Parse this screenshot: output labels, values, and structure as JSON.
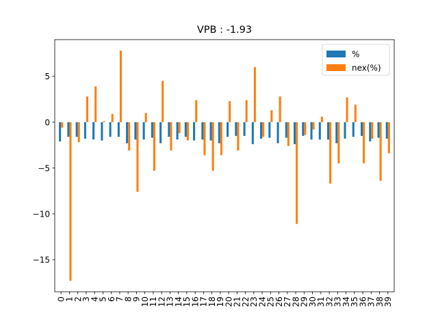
{
  "chart_data": {
    "type": "bar",
    "title": "VPB : -1.93",
    "xlabel": "",
    "ylabel": "",
    "categories": [
      "0",
      "1",
      "2",
      "3",
      "4",
      "5",
      "6",
      "7",
      "8",
      "9",
      "10",
      "11",
      "12",
      "13",
      "14",
      "15",
      "16",
      "17",
      "18",
      "19",
      "20",
      "21",
      "22",
      "23",
      "24",
      "25",
      "26",
      "27",
      "28",
      "29",
      "30",
      "31",
      "32",
      "33",
      "34",
      "35",
      "36",
      "37",
      "38",
      "39"
    ],
    "ylim": [
      -18.5,
      9.0
    ],
    "yticks": [
      5,
      0,
      -5,
      -10,
      -15
    ],
    "ytick_labels": [
      "5",
      "0",
      "−5",
      "−10",
      "−15"
    ],
    "legend_position": "top-right",
    "grid": false,
    "series": [
      {
        "name": "%",
        "color": "#1f77b4",
        "values": [
          -2.1,
          -1.6,
          -1.6,
          -1.8,
          -1.9,
          -2.0,
          -1.6,
          -1.6,
          -2.3,
          -1.9,
          -1.9,
          -1.7,
          -2.3,
          -1.6,
          -1.9,
          -1.6,
          -2.0,
          -1.9,
          -2.0,
          -2.3,
          -1.6,
          -1.5,
          -1.5,
          -2.4,
          -1.8,
          -1.7,
          -2.3,
          -1.7,
          -2.4,
          -1.5,
          -1.9,
          -1.9,
          -1.9,
          -2.3,
          -1.8,
          -1.6,
          -1.5,
          -2.1,
          -1.7,
          -1.8
        ]
      },
      {
        "name": "nex(%)",
        "color": "#ff7f0e",
        "values": [
          -0.6,
          -17.3,
          -2.2,
          2.8,
          3.9,
          0.1,
          0.9,
          7.8,
          -3.1,
          -7.6,
          1.0,
          -5.3,
          4.5,
          -3.1,
          -1.2,
          -2.0,
          2.4,
          -3.6,
          -5.3,
          -3.6,
          2.3,
          -3.1,
          2.4,
          6.0,
          -1.6,
          1.3,
          2.8,
          -2.6,
          -11.1,
          -1.4,
          -0.8,
          0.6,
          -6.7,
          -4.5,
          2.7,
          1.9,
          -4.5,
          -1.8,
          -6.4,
          -3.4
        ]
      }
    ]
  }
}
